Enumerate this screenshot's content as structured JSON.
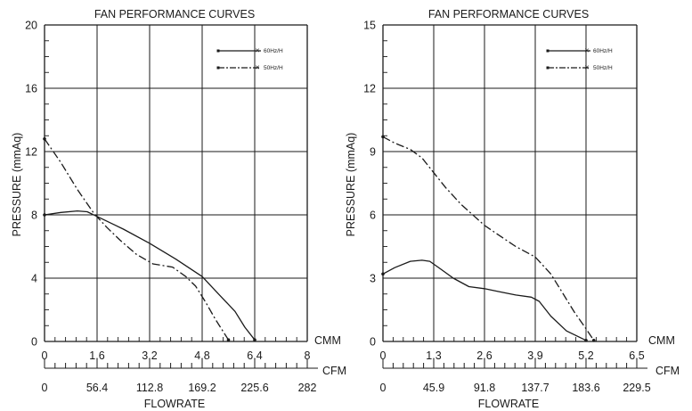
{
  "chart_data": [
    {
      "type": "line",
      "title": "FAN PERFORMANCE CURVES",
      "ylabel": "PRESSURE (mmAq)",
      "xlabel": "FLOWRATE",
      "ylim": [
        0,
        20
      ],
      "yticks": [
        0,
        4,
        8,
        12,
        16,
        20
      ],
      "xlim": [
        0,
        8
      ],
      "x_units_primary": "CMM",
      "xticks_primary": [
        "0",
        "1.6",
        "3.2",
        "4.8",
        "6.4",
        "8"
      ],
      "x_units_secondary": "CFM",
      "xticks_secondary": [
        "0",
        "56.4",
        "112.8",
        "169.2",
        "225.6",
        "282"
      ],
      "grid": true,
      "legend_position": "top-right",
      "series": [
        {
          "name": "60Hz/H",
          "style": "solid",
          "color": "#1a1a1a",
          "x": [
            0,
            0.5,
            1.0,
            1.3,
            1.6,
            2.4,
            3.2,
            4.0,
            4.8,
            5.3,
            5.8,
            6.1,
            6.4
          ],
          "y": [
            8.0,
            8.15,
            8.25,
            8.2,
            7.9,
            7.1,
            6.2,
            5.2,
            4.1,
            3.0,
            1.9,
            0.9,
            0.1
          ]
        },
        {
          "name": "50Hz/H",
          "style": "dash-dot",
          "color": "#1a1a1a",
          "x": [
            0,
            0.5,
            1.0,
            1.5,
            1.9,
            2.3,
            2.8,
            3.3,
            3.9,
            4.3,
            4.6,
            4.9,
            5.2,
            5.6
          ],
          "y": [
            12.8,
            11.3,
            9.6,
            8.1,
            7.2,
            6.4,
            5.5,
            4.9,
            4.7,
            4.1,
            3.5,
            2.5,
            1.4,
            0.1
          ]
        }
      ]
    },
    {
      "type": "line",
      "title": "FAN PERFORMANCE CURVES",
      "ylabel": "PRESSURE (mmAq)",
      "xlabel": "FLOWRATE",
      "ylim": [
        0,
        15
      ],
      "yticks": [
        0,
        3,
        6,
        9,
        12,
        15
      ],
      "xlim": [
        0,
        6.5
      ],
      "x_units_primary": "CMM",
      "xticks_primary": [
        "0",
        "1.3",
        "2.6",
        "3.9",
        "5.2",
        "6.5"
      ],
      "x_units_secondary": "CFM",
      "xticks_secondary": [
        "0",
        "45.9",
        "91.8",
        "137.7",
        "183.6",
        "229.5"
      ],
      "grid": true,
      "legend_position": "top-right",
      "series": [
        {
          "name": "60Hz/H",
          "style": "solid",
          "color": "#1a1a1a",
          "x": [
            0,
            0.3,
            0.7,
            1.0,
            1.2,
            1.5,
            1.8,
            2.2,
            2.6,
            3.0,
            3.4,
            3.8,
            4.0,
            4.3,
            4.7,
            5.2
          ],
          "y": [
            3.2,
            3.5,
            3.8,
            3.85,
            3.8,
            3.4,
            3.0,
            2.6,
            2.5,
            2.35,
            2.2,
            2.1,
            1.9,
            1.2,
            0.5,
            0.05
          ]
        },
        {
          "name": "50Hz/H",
          "style": "dash-dot",
          "color": "#1a1a1a",
          "x": [
            0,
            0.3,
            0.7,
            1.0,
            1.3,
            1.6,
            2.0,
            2.6,
            3.0,
            3.4,
            3.9,
            4.3,
            4.6,
            4.9,
            5.2,
            5.4
          ],
          "y": [
            9.7,
            9.4,
            9.1,
            8.7,
            8.0,
            7.3,
            6.5,
            5.5,
            5.0,
            4.5,
            4.0,
            3.2,
            2.3,
            1.4,
            0.6,
            0.05
          ]
        }
      ]
    }
  ]
}
